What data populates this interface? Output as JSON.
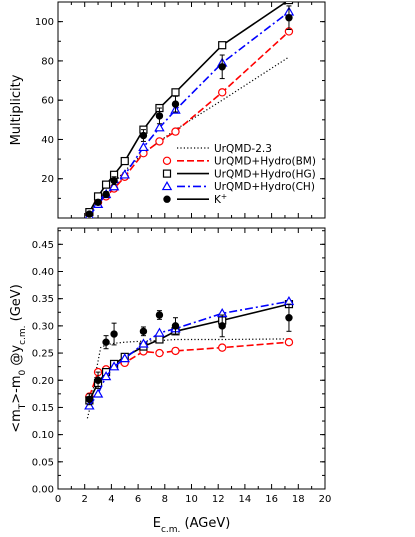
{
  "chart_data": [
    {
      "type": "line",
      "panel": "top",
      "ylabel": "Multiplicity",
      "xlim": [
        0,
        20
      ],
      "ylim": [
        0,
        110
      ],
      "yticks": [
        20,
        40,
        60,
        80,
        100
      ],
      "grid": false,
      "legend_position": "bottom-right",
      "series": [
        {
          "name": "UrQMD-2.3",
          "style": "dotted",
          "color": "#000000",
          "marker": "none",
          "x": [
            2.35,
            3.0,
            3.6,
            4.2,
            5.0,
            6.4,
            7.6,
            8.8,
            12.3,
            17.3
          ],
          "y": [
            3,
            9,
            14,
            18,
            24,
            33,
            39,
            45,
            60,
            82
          ]
        },
        {
          "name": "UrQMD+Hydro(BM)",
          "style": "dashed",
          "color": "#ff0000",
          "marker": "open-circle",
          "x": [
            2.35,
            3.0,
            3.6,
            4.2,
            5.0,
            6.4,
            7.6,
            8.8,
            12.3,
            17.3
          ],
          "y": [
            2,
            8,
            11,
            15,
            21,
            33,
            39,
            44,
            64,
            95
          ]
        },
        {
          "name": "UrQMD+Hydro(HG)",
          "style": "solid",
          "color": "#000000",
          "marker": "open-square",
          "x": [
            2.35,
            3.0,
            3.6,
            4.2,
            5.0,
            6.4,
            7.6,
            8.8,
            12.3,
            17.3
          ],
          "y": [
            3,
            11,
            17,
            22,
            29,
            45,
            56,
            64,
            88,
            111
          ]
        },
        {
          "name": "UrQMD+Hydro(CH)",
          "style": "dashdot",
          "color": "#0000ff",
          "marker": "open-triangle",
          "x": [
            2.35,
            3.0,
            3.6,
            4.2,
            5.0,
            6.4,
            7.6,
            8.8,
            12.3,
            17.3
          ],
          "y": [
            1,
            7,
            12,
            16,
            22,
            36,
            46,
            55,
            79,
            105
          ]
        },
        {
          "name": "K⁺",
          "style": "none",
          "color": "#000000",
          "marker": "filled-circle",
          "x": [
            2.35,
            3.0,
            3.6,
            4.2,
            6.4,
            7.6,
            8.8,
            12.3,
            17.3
          ],
          "y": [
            2,
            8,
            12,
            19,
            42,
            52,
            58,
            77,
            102
          ],
          "err": [
            0.5,
            1.0,
            1.5,
            2.0,
            3.0,
            4.0,
            4.0,
            6.0,
            6.0
          ]
        }
      ],
      "legend": [
        {
          "label": "UrQMD-2.3",
          "series": 0
        },
        {
          "label": "UrQMD+Hydro(BM)",
          "series": 1
        },
        {
          "label": "UrQMD+Hydro(HG)",
          "series": 2
        },
        {
          "label": "UrQMD+Hydro(CH)",
          "series": 3
        },
        {
          "label": "K⁺",
          "series": 4
        }
      ]
    },
    {
      "type": "line",
      "panel": "bottom",
      "xlabel": "E_c.m. (AGeV)",
      "ylabel": "<m_T>-m_0 @y_c.m. (GeV)",
      "xlim": [
        0,
        20
      ],
      "ylim": [
        0,
        0.48
      ],
      "xticks": [
        0,
        2,
        4,
        6,
        8,
        10,
        12,
        14,
        16,
        18,
        20
      ],
      "yticks": [
        0.0,
        0.05,
        0.1,
        0.15,
        0.2,
        0.25,
        0.3,
        0.35,
        0.4,
        0.45
      ],
      "grid": false,
      "series": [
        {
          "name": "UrQMD-2.3",
          "style": "dotted",
          "color": "#000000",
          "marker": "none",
          "x": [
            2.2,
            2.5,
            2.8,
            3.2,
            3.6,
            4.2,
            5.0,
            6.4,
            7.6,
            8.8,
            12.3,
            17.3
          ],
          "y": [
            0.13,
            0.16,
            0.21,
            0.26,
            0.265,
            0.268,
            0.27,
            0.272,
            0.273,
            0.275,
            0.275,
            0.276
          ]
        },
        {
          "name": "UrQMD+Hydro(BM)",
          "style": "dashed",
          "color": "#ff0000",
          "marker": "open-circle",
          "x": [
            2.35,
            3.0,
            3.6,
            4.2,
            5.0,
            6.4,
            7.6,
            8.8,
            12.3,
            17.3
          ],
          "y": [
            0.17,
            0.215,
            0.22,
            0.228,
            0.232,
            0.253,
            0.25,
            0.254,
            0.26,
            0.27
          ]
        },
        {
          "name": "UrQMD+Hydro(HG)",
          "style": "solid",
          "color": "#000000",
          "marker": "open-square",
          "x": [
            2.35,
            3.0,
            3.6,
            4.2,
            5.0,
            6.4,
            7.6,
            8.8,
            12.3,
            17.3
          ],
          "y": [
            0.163,
            0.195,
            0.215,
            0.23,
            0.243,
            0.262,
            0.275,
            0.29,
            0.31,
            0.34
          ]
        },
        {
          "name": "UrQMD+Hydro(CH)",
          "style": "dashdot",
          "color": "#0000ff",
          "marker": "open-triangle",
          "x": [
            2.35,
            3.0,
            3.6,
            4.2,
            5.0,
            6.4,
            7.6,
            8.8,
            12.3,
            17.3
          ],
          "y": [
            0.153,
            0.175,
            0.207,
            0.225,
            0.24,
            0.267,
            0.287,
            0.295,
            0.323,
            0.345
          ]
        },
        {
          "name": "K⁺",
          "style": "none",
          "color": "#000000",
          "marker": "filled-circle",
          "x": [
            2.35,
            3.0,
            3.6,
            4.2,
            6.4,
            7.6,
            8.8,
            12.3,
            17.3
          ],
          "y": [
            0.165,
            0.2,
            0.27,
            0.285,
            0.29,
            0.32,
            0.3,
            0.3,
            0.315
          ],
          "err": [
            0.01,
            0.015,
            0.012,
            0.02,
            0.008,
            0.008,
            0.015,
            0.02,
            0.025
          ]
        }
      ]
    }
  ]
}
